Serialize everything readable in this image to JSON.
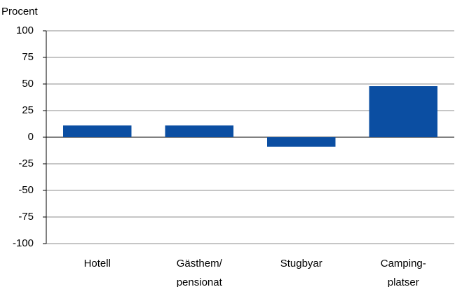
{
  "chart_data": {
    "type": "bar",
    "y_label": "Procent",
    "categories": [
      "Hotell",
      "Gästhem/ pensionat",
      "Stugbyar",
      "Camping- platser"
    ],
    "values": [
      11,
      11,
      -9,
      48
    ],
    "color": "#0b4ea2",
    "ylim": [
      -100,
      100
    ],
    "yticks": [
      -100,
      -75,
      -50,
      -25,
      0,
      25,
      50,
      75,
      100
    ],
    "grid": true
  }
}
